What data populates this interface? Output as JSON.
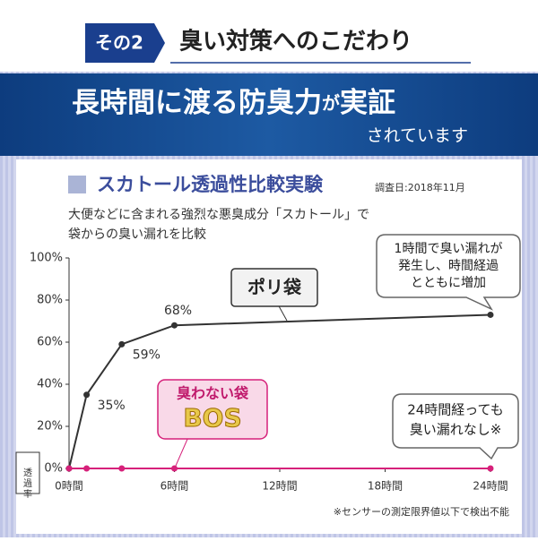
{
  "header": {
    "badge": "その2",
    "title": "臭い対策へのこだわり"
  },
  "banner": {
    "main": "長時間に渡る防臭力",
    "particle": "が",
    "tail": "実証",
    "sub": "されています"
  },
  "chart_data": {
    "type": "line",
    "title": "スカトール透過性比較実験",
    "date": "調査日:2018年11月",
    "description": [
      "大便などに含まれる強烈な悪臭成分「スカトール」で",
      "袋からの臭い漏れを比較"
    ],
    "y_label": "透過率",
    "x": [
      0,
      1,
      3,
      6,
      24
    ],
    "series": [
      {
        "name": "ポリ袋",
        "color": "#333333",
        "values": [
          0,
          35,
          59,
          68,
          73
        ],
        "value_labels": [
          null,
          "35%",
          "59%",
          "68%",
          null
        ]
      },
      {
        "name": "臭わない袋",
        "color": "#d6217a",
        "values": [
          0,
          0,
          0,
          0,
          0
        ]
      }
    ],
    "brand": "BOS",
    "xlim": [
      0,
      24
    ],
    "xticks": [
      {
        "value": 0,
        "label": "0時間"
      },
      {
        "value": 6,
        "label": "6時間"
      },
      {
        "value": 12,
        "label": "12時間"
      },
      {
        "value": 18,
        "label": "18時間"
      },
      {
        "value": 24,
        "label": "24時間"
      }
    ],
    "ylim": [
      0,
      100
    ],
    "yticks": [
      {
        "value": 0,
        "label": "0%"
      },
      {
        "value": 20,
        "label": "20%"
      },
      {
        "value": 40,
        "label": "40%"
      },
      {
        "value": 60,
        "label": "60%"
      },
      {
        "value": 80,
        "label": "80%"
      },
      {
        "value": 100,
        "label": "100%"
      }
    ],
    "callout_1": [
      "1時間で臭い漏れが",
      "発生し、時間経過",
      "とともに増加"
    ],
    "callout_2": [
      "24時間経っても",
      "臭い漏れなし※"
    ],
    "footnote": "※センサーの測定限界値以下で検出不能"
  }
}
